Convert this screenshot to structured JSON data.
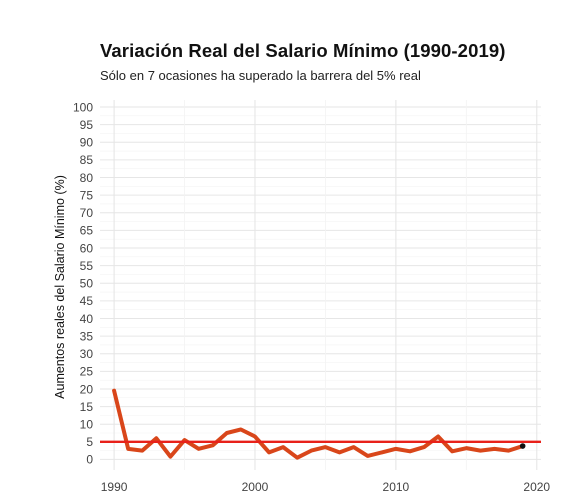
{
  "chart_data": {
    "type": "line",
    "title": "Variación Real del Salario Mínimo (1990-2019)",
    "subtitle": "Sólo en 7 ocasiones ha superado la barrera del 5% real",
    "xlabel": "",
    "ylabel": "Aumentos reales del Salario Mínimo (%)",
    "xlim": [
      1989,
      2020.3
    ],
    "ylim": [
      -3,
      102
    ],
    "x_ticks": [
      1990,
      2000,
      2010,
      2020
    ],
    "y_ticks": [
      0,
      5,
      10,
      15,
      20,
      25,
      30,
      35,
      40,
      45,
      50,
      55,
      60,
      65,
      70,
      75,
      80,
      85,
      90,
      95,
      100
    ],
    "grid": true,
    "series": [
      {
        "color": "#d9461a",
        "x": [
          1990,
          1991,
          1992,
          1993,
          1994,
          1995,
          1996,
          1997,
          1998,
          1999,
          2000,
          2001,
          2002,
          2003,
          2004,
          2005,
          2006,
          2007,
          2008,
          2009,
          2010,
          2011,
          2012,
          2013,
          2014,
          2015,
          2016,
          2017,
          2018,
          2019
        ],
        "values": [
          19.5,
          3.0,
          2.5,
          6.0,
          0.8,
          5.5,
          3.0,
          4.0,
          7.5,
          8.5,
          6.5,
          2.0,
          3.5,
          0.5,
          2.5,
          3.5,
          2.0,
          3.5,
          1.0,
          2.0,
          3.0,
          2.3,
          3.5,
          6.5,
          2.3,
          3.2,
          2.5,
          3.0,
          2.5,
          3.8
        ]
      }
    ],
    "reference_line": {
      "y": 5,
      "color": "#e8211a"
    },
    "endpoint": {
      "x": 2019,
      "y": 3.8,
      "color": "#111111"
    }
  }
}
